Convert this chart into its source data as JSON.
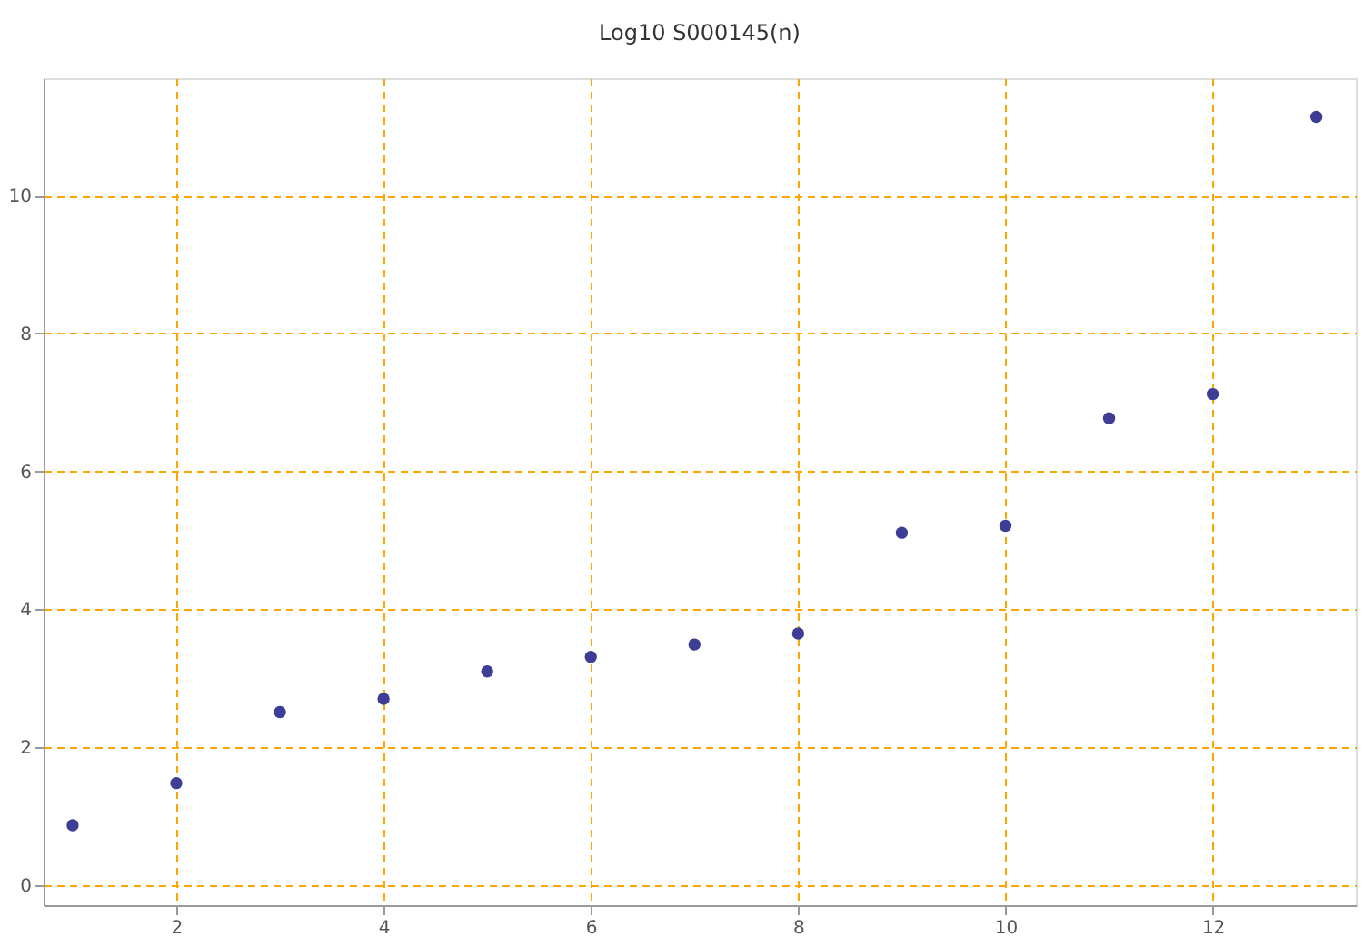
{
  "chart_data": {
    "type": "scatter",
    "title": "Log10 S000145(n)",
    "x": [
      1,
      2,
      3,
      4,
      5,
      6,
      7,
      8,
      9,
      10,
      11,
      12,
      13
    ],
    "series": [
      {
        "color": "#3d3d96",
        "values": [
          0.87,
          1.48,
          2.51,
          2.7,
          3.1,
          3.31,
          3.49,
          3.65,
          5.11,
          5.21,
          6.77,
          7.12,
          11.14
        ]
      }
    ],
    "xlim": [
      0.72,
      13.38
    ],
    "ylim": [
      -0.29,
      11.7
    ],
    "xticks": [
      2,
      4,
      6,
      8,
      10,
      12
    ],
    "yticks": [
      0,
      2,
      4,
      6,
      8,
      10
    ],
    "grid": true,
    "marker": "circle",
    "legend": false
  }
}
